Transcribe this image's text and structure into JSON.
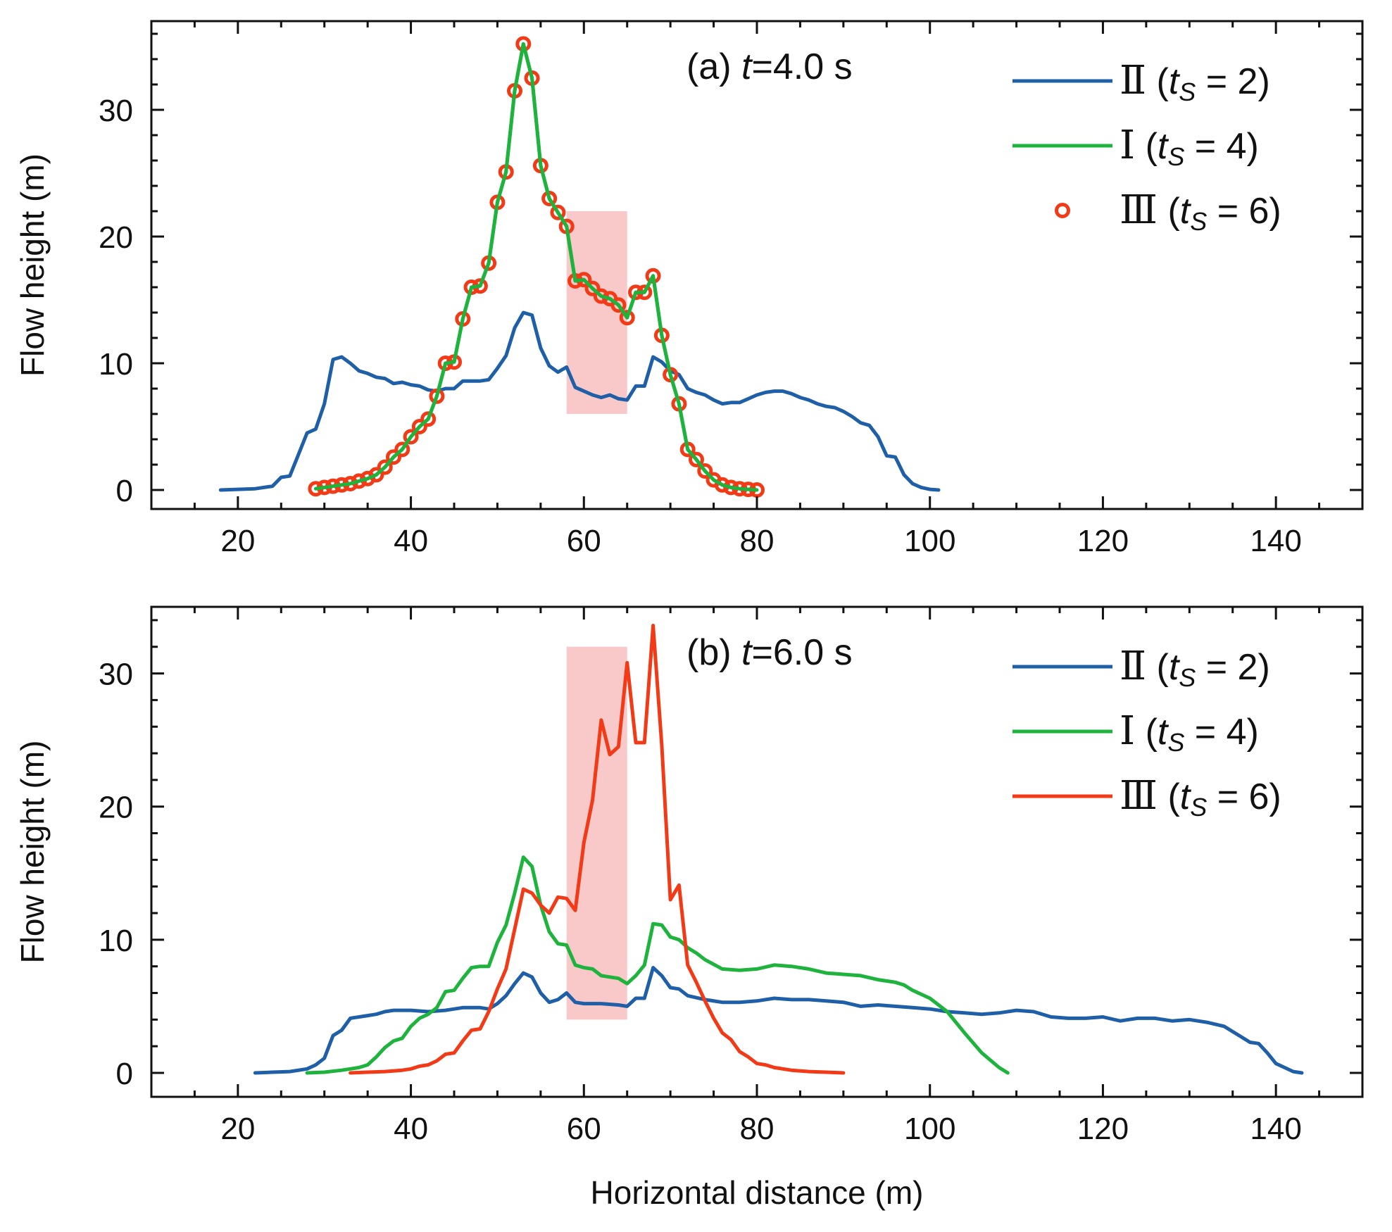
{
  "chart_data": [
    {
      "type": "line",
      "panel": "(a)",
      "annotation": {
        "prefix": "(a)",
        "var": "t",
        "rest": "=4.0 s"
      },
      "xlabel": "",
      "ylabel": "Flow height (m)",
      "xlim": [
        10,
        150
      ],
      "ylim": [
        -1.5,
        37
      ],
      "xticks": [
        20,
        40,
        60,
        80,
        100,
        120,
        140
      ],
      "yticks": [
        0,
        10,
        20,
        30
      ],
      "highlight": {
        "x": [
          58,
          65
        ],
        "y": [
          6,
          22
        ],
        "color": "#f9c9c9"
      },
      "legend_position": "top-right",
      "series": [
        {
          "numeral": "Ⅱ",
          "param": "t",
          "param_sub": "S",
          "value_text": " = 2)",
          "color": "#1f5fa8",
          "style": "line",
          "x": [
            18,
            20,
            22,
            24,
            25,
            26,
            27,
            28,
            29,
            30,
            31,
            32,
            33,
            34,
            35,
            36,
            37,
            38,
            39,
            40,
            41,
            42,
            43,
            44,
            45,
            46,
            47,
            48,
            49,
            50,
            51,
            52,
            53,
            54,
            55,
            56,
            57,
            58,
            59,
            60,
            61,
            62,
            63,
            64,
            65,
            66,
            67,
            68,
            69,
            70,
            71,
            72,
            73,
            74,
            75,
            76,
            77,
            78,
            79,
            80,
            81,
            82,
            83,
            84,
            85,
            86,
            87,
            88,
            89,
            90,
            91,
            92,
            93,
            94,
            95,
            96,
            97,
            98,
            99,
            100,
            101
          ],
          "y": [
            0,
            0.05,
            0.1,
            0.3,
            1.0,
            1.1,
            2.8,
            4.5,
            4.8,
            6.8,
            10.3,
            10.5,
            10.0,
            9.4,
            9.2,
            8.9,
            8.8,
            8.4,
            8.5,
            8.3,
            8.2,
            7.9,
            7.8,
            8.0,
            8.0,
            8.6,
            8.6,
            8.6,
            8.7,
            9.6,
            10.6,
            12.8,
            14.0,
            13.8,
            11.2,
            9.8,
            9.3,
            9.7,
            8.1,
            7.8,
            7.5,
            7.3,
            7.5,
            7.2,
            7.1,
            8.2,
            8.2,
            10.5,
            10.1,
            9.4,
            9.1,
            8.0,
            7.7,
            7.5,
            7.1,
            6.8,
            6.9,
            6.9,
            7.2,
            7.5,
            7.7,
            7.8,
            7.8,
            7.6,
            7.3,
            7.1,
            6.8,
            6.6,
            6.5,
            6.2,
            5.8,
            5.3,
            5.1,
            4.2,
            2.7,
            2.6,
            1.2,
            0.5,
            0.2,
            0.05,
            0
          ]
        },
        {
          "numeral": "Ⅰ",
          "param": "t",
          "param_sub": "S",
          "value_text": " = 4)",
          "color": "#1db33c",
          "style": "line",
          "x": [
            29,
            30,
            31,
            32,
            33,
            34,
            35,
            36,
            37,
            38,
            39,
            40,
            41,
            42,
            43,
            44,
            45,
            46,
            47,
            48,
            49,
            50,
            51,
            52,
            53,
            54,
            55,
            56,
            57,
            58,
            59,
            60,
            61,
            62,
            63,
            64,
            65,
            66,
            67,
            68,
            69,
            70,
            71,
            72,
            73,
            74,
            75,
            76,
            77,
            78,
            79,
            80
          ],
          "y": [
            0.1,
            0.2,
            0.3,
            0.4,
            0.5,
            0.7,
            0.9,
            1.2,
            1.8,
            2.6,
            3.2,
            4.2,
            5.0,
            5.6,
            7.4,
            10.0,
            10.1,
            13.5,
            16.0,
            16.1,
            17.9,
            22.7,
            25.1,
            31.5,
            35.2,
            32.5,
            25.6,
            23.0,
            21.9,
            20.8,
            16.5,
            16.6,
            15.9,
            15.3,
            15.1,
            14.6,
            13.6,
            15.6,
            15.6,
            16.9,
            12.2,
            9.1,
            6.8,
            3.2,
            2.4,
            1.5,
            0.8,
            0.4,
            0.2,
            0.1,
            0.05,
            0
          ]
        },
        {
          "numeral": "Ⅲ",
          "param": "t",
          "param_sub": "S",
          "value_text": " = 6)",
          "color": "#f23a16",
          "style": "markers",
          "x": [
            29,
            30,
            31,
            32,
            33,
            34,
            35,
            36,
            37,
            38,
            39,
            40,
            41,
            42,
            43,
            44,
            45,
            46,
            47,
            48,
            49,
            50,
            51,
            52,
            53,
            54,
            55,
            56,
            57,
            58,
            59,
            60,
            61,
            62,
            63,
            64,
            65,
            66,
            67,
            68,
            69,
            70,
            71,
            72,
            73,
            74,
            75,
            76,
            77,
            78,
            79,
            80
          ],
          "y": [
            0.1,
            0.2,
            0.3,
            0.4,
            0.5,
            0.7,
            0.9,
            1.2,
            1.8,
            2.6,
            3.2,
            4.2,
            5.0,
            5.6,
            7.4,
            10.0,
            10.1,
            13.5,
            16.0,
            16.1,
            17.9,
            22.7,
            25.1,
            31.5,
            35.2,
            32.5,
            25.6,
            23.0,
            21.9,
            20.8,
            16.5,
            16.6,
            15.9,
            15.3,
            15.1,
            14.6,
            13.6,
            15.6,
            15.6,
            16.9,
            12.2,
            9.1,
            6.8,
            3.2,
            2.4,
            1.5,
            0.8,
            0.4,
            0.2,
            0.1,
            0.05,
            0
          ]
        }
      ]
    },
    {
      "type": "line",
      "panel": "(b)",
      "annotation": {
        "prefix": "(b)",
        "var": "t",
        "rest": "=6.0 s"
      },
      "xlabel": "Horizontal distance (m)",
      "ylabel": "Flow height (m)",
      "xlim": [
        10,
        150
      ],
      "ylim": [
        -1.8,
        35
      ],
      "xticks": [
        20,
        40,
        60,
        80,
        100,
        120,
        140
      ],
      "yticks": [
        0,
        10,
        20,
        30
      ],
      "highlight": {
        "x": [
          58,
          65
        ],
        "y": [
          4,
          32
        ],
        "color": "#f9c9c9"
      },
      "legend_position": "top-right",
      "series": [
        {
          "numeral": "Ⅱ",
          "param": "t",
          "param_sub": "S",
          "value_text": " = 2)",
          "color": "#1f5fa8",
          "style": "line",
          "x": [
            22,
            24,
            26,
            28,
            29,
            30,
            31,
            32,
            33,
            34,
            35,
            36,
            37,
            38,
            40,
            42,
            44,
            46,
            48,
            49,
            50,
            51,
            52,
            53,
            54,
            55,
            56,
            57,
            58,
            59,
            60,
            62,
            64,
            65,
            66,
            67,
            68,
            69,
            70,
            71,
            72,
            74,
            76,
            78,
            80,
            82,
            84,
            86,
            88,
            90,
            92,
            94,
            96,
            98,
            100,
            102,
            104,
            106,
            108,
            110,
            112,
            114,
            116,
            118,
            120,
            122,
            124,
            126,
            128,
            130,
            132,
            134,
            136,
            137,
            138,
            139,
            140,
            141,
            142,
            143
          ],
          "y": [
            0,
            0.05,
            0.1,
            0.3,
            0.6,
            1.1,
            2.8,
            3.2,
            4.1,
            4.2,
            4.3,
            4.4,
            4.6,
            4.7,
            4.7,
            4.6,
            4.7,
            4.9,
            4.9,
            4.8,
            5.2,
            5.8,
            6.7,
            7.5,
            7.2,
            6.0,
            5.3,
            5.5,
            6.0,
            5.3,
            5.2,
            5.2,
            5.1,
            5.0,
            5.6,
            5.6,
            7.9,
            7.3,
            6.4,
            6.3,
            5.8,
            5.5,
            5.3,
            5.3,
            5.4,
            5.6,
            5.5,
            5.5,
            5.4,
            5.3,
            5.0,
            5.1,
            5.0,
            4.9,
            4.8,
            4.6,
            4.5,
            4.4,
            4.5,
            4.7,
            4.6,
            4.2,
            4.1,
            4.1,
            4.2,
            3.9,
            4.1,
            4.1,
            3.9,
            4.0,
            3.8,
            3.5,
            2.7,
            2.3,
            2.2,
            1.5,
            0.7,
            0.4,
            0.1,
            0
          ]
        },
        {
          "numeral": "Ⅰ",
          "param": "t",
          "param_sub": "S",
          "value_text": " = 4)",
          "color": "#1db33c",
          "style": "line",
          "x": [
            28,
            30,
            32,
            34,
            35,
            36,
            37,
            38,
            39,
            40,
            41,
            42,
            43,
            44,
            45,
            46,
            47,
            48,
            49,
            50,
            51,
            52,
            53,
            54,
            55,
            56,
            57,
            58,
            59,
            60,
            61,
            62,
            63,
            64,
            65,
            66,
            67,
            68,
            69,
            70,
            71,
            72,
            73,
            74,
            76,
            78,
            80,
            82,
            84,
            86,
            88,
            90,
            92,
            94,
            96,
            97,
            98,
            100,
            102,
            104,
            106,
            108,
            109
          ],
          "y": [
            0,
            0.05,
            0.2,
            0.4,
            0.6,
            1.2,
            1.9,
            2.4,
            2.6,
            3.5,
            4.1,
            4.4,
            4.9,
            6.1,
            6.2,
            7.1,
            7.9,
            8.0,
            8.0,
            9.8,
            11.1,
            13.5,
            16.2,
            15.5,
            12.6,
            10.6,
            9.7,
            9.6,
            8.1,
            7.9,
            7.8,
            7.3,
            7.2,
            7.1,
            6.7,
            7.3,
            8.1,
            11.2,
            11.1,
            10.2,
            10.0,
            9.4,
            9.0,
            8.5,
            7.8,
            7.7,
            7.8,
            8.1,
            8.0,
            7.8,
            7.5,
            7.4,
            7.3,
            7.0,
            6.8,
            6.6,
            6.2,
            5.6,
            4.6,
            3.0,
            1.5,
            0.4,
            0
          ]
        },
        {
          "numeral": "Ⅲ",
          "param": "t",
          "param_sub": "S",
          "value_text": " = 6)",
          "color": "#f23a16",
          "style": "line",
          "x": [
            33,
            35,
            37,
            39,
            40,
            41,
            42,
            43,
            44,
            45,
            46,
            47,
            48,
            49,
            50,
            51,
            52,
            53,
            54,
            55,
            56,
            57,
            58,
            59,
            60,
            61,
            62,
            63,
            64,
            65,
            66,
            67,
            68,
            69,
            70,
            71,
            72,
            73,
            74,
            75,
            76,
            77,
            78,
            79,
            80,
            81,
            82,
            84,
            86,
            88,
            90
          ],
          "y": [
            0,
            0.05,
            0.1,
            0.2,
            0.3,
            0.5,
            0.6,
            0.9,
            1.4,
            1.5,
            2.4,
            3.2,
            3.3,
            4.6,
            6.3,
            7.8,
            10.8,
            13.8,
            13.5,
            12.6,
            12.0,
            13.2,
            13.1,
            12.2,
            17.3,
            20.5,
            26.5,
            23.9,
            24.5,
            30.8,
            24.8,
            24.8,
            33.6,
            24.6,
            13.0,
            14.1,
            8.1,
            6.8,
            5.4,
            4.1,
            3.0,
            2.5,
            1.6,
            1.2,
            0.7,
            0.6,
            0.4,
            0.2,
            0.1,
            0.05,
            0
          ]
        }
      ]
    }
  ]
}
